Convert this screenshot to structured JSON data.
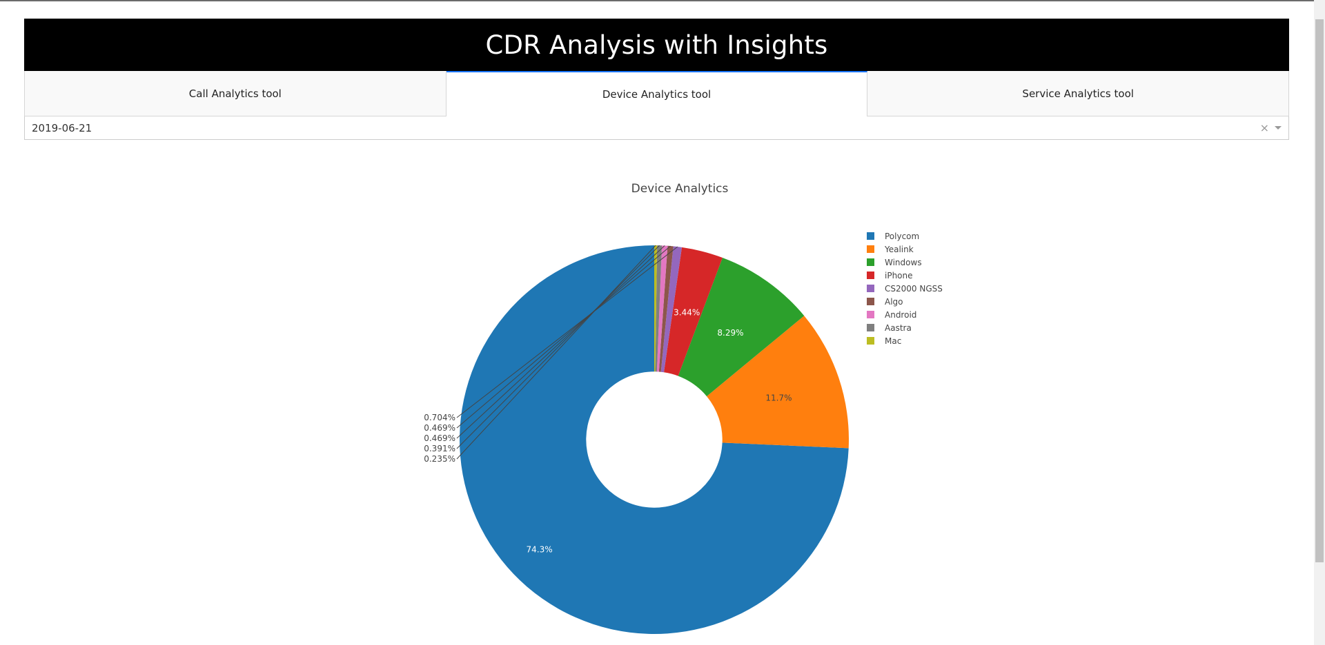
{
  "header": {
    "title": "CDR Analysis with Insights"
  },
  "tabs": [
    {
      "label": "Call Analytics tool",
      "selected": false
    },
    {
      "label": "Device Analytics tool",
      "selected": true
    },
    {
      "label": "Service Analytics tool",
      "selected": false
    }
  ],
  "date_dropdown": {
    "value": "2019-06-21",
    "clear_icon": "close-icon",
    "arrow_icon": "chevron-down-icon"
  },
  "chart_data": {
    "type": "pie",
    "title": "Device Analytics",
    "hole": 0.35,
    "legend_position": "right",
    "slices": [
      {
        "label": "Polycom",
        "percent": 74.3,
        "text": "74.3%",
        "color": "#1f77b4"
      },
      {
        "label": "Yealink",
        "percent": 11.7,
        "text": "11.7%",
        "color": "#ff7f0e"
      },
      {
        "label": "Windows",
        "percent": 8.29,
        "text": "8.29%",
        "color": "#2ca02c"
      },
      {
        "label": "iPhone",
        "percent": 3.44,
        "text": "3.44%",
        "color": "#d62728"
      },
      {
        "label": "CS2000 NGSS",
        "percent": 0.704,
        "text": "0.704%",
        "color": "#9467bd"
      },
      {
        "label": "Algo",
        "percent": 0.469,
        "text": "0.469%",
        "color": "#8c564b"
      },
      {
        "label": "Android",
        "percent": 0.469,
        "text": "0.469%",
        "color": "#e377c2"
      },
      {
        "label": "Aastra",
        "percent": 0.391,
        "text": "0.391%",
        "color": "#7f7f7f"
      },
      {
        "label": "Mac",
        "percent": 0.235,
        "text": "0.235%",
        "color": "#bcbd22"
      }
    ]
  }
}
